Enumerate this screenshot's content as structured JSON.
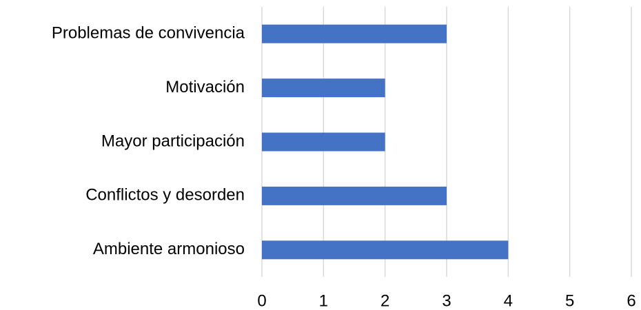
{
  "chart_data": {
    "type": "barh",
    "categories": [
      "Problemas de convivencia",
      "Motivación",
      "Mayor participación",
      "Conflictos y desorden",
      "Ambiente armonioso"
    ],
    "values": [
      3,
      2,
      2,
      3,
      4
    ],
    "color": "#4472c4",
    "xlim": [
      0,
      6
    ],
    "xticks": [
      0,
      1,
      2,
      3,
      4,
      5,
      6
    ],
    "grid": true
  }
}
